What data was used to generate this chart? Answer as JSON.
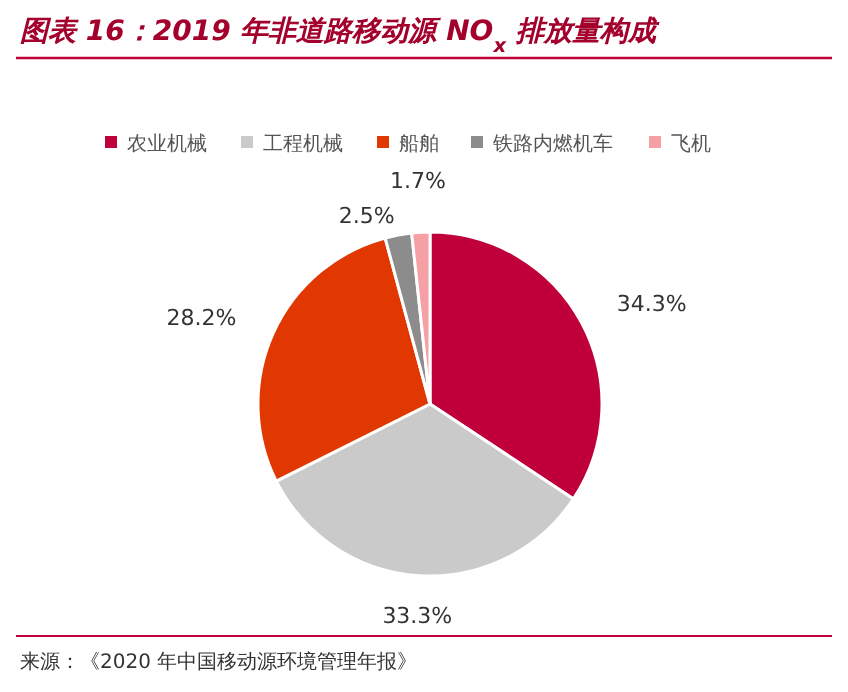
{
  "chart_data": {
    "type": "pie",
    "title": "图表 16：2019 年非道路移动源 NO$_{x}$ 排放量构成",
    "categories": [
      "农业机械",
      "工程机械",
      "船舶",
      "铁路内燃机车",
      "飞机"
    ],
    "values": [
      34.3,
      33.3,
      28.2,
      2.5,
      1.7
    ],
    "colors": [
      "#c0003a",
      "#cacaca",
      "#e03800",
      "#8c8c8c",
      "#f4a0a4"
    ],
    "value_labels": [
      "34.3%",
      "33.3%",
      "28.2%",
      "2.5%",
      "1.7%"
    ],
    "legend": "top",
    "annotations": [
      "来源：《2020 年中国移动源环境管理年报》"
    ]
  }
}
